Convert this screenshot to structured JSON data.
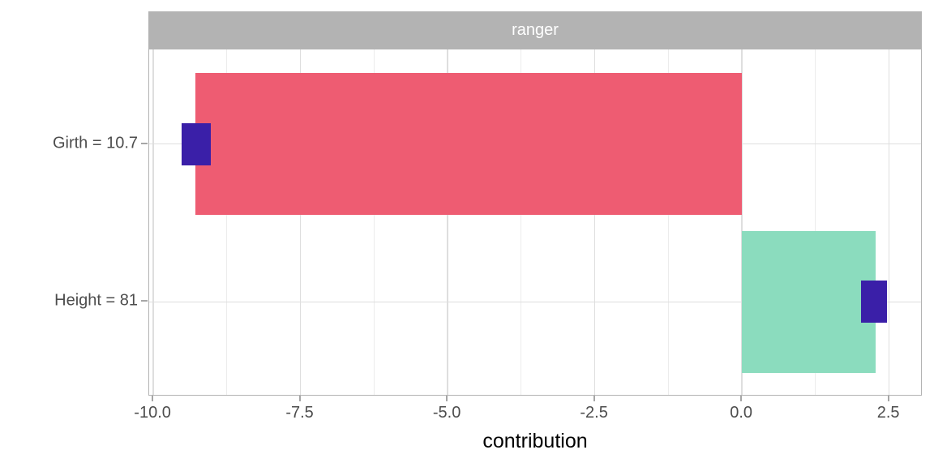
{
  "figure": {
    "facet_title": "ranger",
    "x_axis_title": "contribution"
  },
  "chart_data": {
    "type": "bar",
    "subtype": "horizontal-bars-with-boxplot-overlay (SHAP feature contribution plot)",
    "title": "ranger",
    "xlabel": "contribution",
    "ylabel": "",
    "grid": "on",
    "legend_position": "none",
    "xlim": [
      -10.07,
      3.07
    ],
    "x_major_ticks": [
      -10.0,
      -7.5,
      -5.0,
      -2.5,
      0.0,
      2.5
    ],
    "x_major_tick_labels": [
      "-10.0",
      "-7.5",
      "-5.0",
      "-2.5",
      "0.0",
      "2.5"
    ],
    "x_minor_gridlines": [
      -8.75,
      -6.25,
      -3.75,
      -1.25,
      1.25
    ],
    "categories": [
      "Girth = 10.7",
      "Height = 81"
    ],
    "rows": [
      {
        "label": "Girth = 10.7",
        "contribution": -9.28,
        "box_low": -9.52,
        "box_high": -9.02,
        "bar_color": "#ee5c72"
      },
      {
        "label": "Height = 81",
        "contribution": 2.27,
        "box_low": 2.02,
        "box_high": 2.47,
        "bar_color": "#8bdcbe"
      }
    ],
    "colors": {
      "negative_bar": "#ee5c72",
      "positive_bar": "#8bdcbe",
      "boxplot": "#3a1fa8",
      "strip_background": "#b3b3b3",
      "strip_text": "#ffffff",
      "panel_border": "#b3b3b3",
      "grid_major": "#dedede",
      "grid_minor": "#ececec",
      "axis_text": "#4d4d4d",
      "axis_title": "#000000"
    }
  }
}
